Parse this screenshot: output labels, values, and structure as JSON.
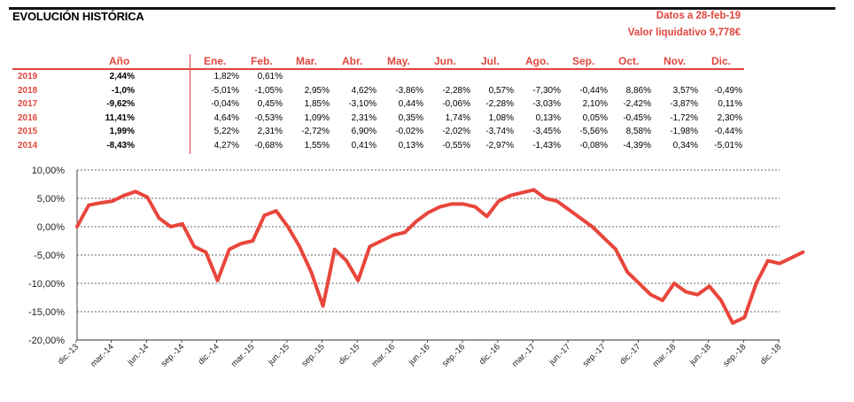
{
  "header": {
    "title": "EVOLUCIÓN HISTÓRICA",
    "date_text": "Datos a 28-feb-19",
    "nav_text": "Valor liquidativo 9,778€"
  },
  "table": {
    "year_header": "Año",
    "months": [
      "Ene.",
      "Feb.",
      "Mar.",
      "Abr.",
      "May.",
      "Jun.",
      "Jul.",
      "Ago.",
      "Sep.",
      "Oct.",
      "Nov.",
      "Dic."
    ],
    "rows": [
      {
        "year": "2019",
        "total": "2,44%",
        "values": [
          "1,82%",
          "0,61%",
          "",
          "",
          "",
          "",
          "",
          "",
          "",
          "",
          "",
          ""
        ]
      },
      {
        "year": "2018",
        "total": "-1,0%",
        "values": [
          "-5,01%",
          "-1,05%",
          "2,95%",
          "4,62%",
          "-3,86%",
          "-2,28%",
          "0,57%",
          "-7,30%",
          "-0,44%",
          "8,86%",
          "3,57%",
          "-0,49%"
        ]
      },
      {
        "year": "2017",
        "total": "-9,62%",
        "values": [
          "-0,04%",
          "0,45%",
          "1,85%",
          "-3,10%",
          "0,44%",
          "-0,06%",
          "-2,28%",
          "-3,03%",
          "2,10%",
          "-2,42%",
          "-3,87%",
          "0,11%"
        ]
      },
      {
        "year": "2016",
        "total": "11,41%",
        "values": [
          "4,64%",
          "-0,53%",
          "1,09%",
          "2,31%",
          "0,35%",
          "1,74%",
          "1,08%",
          "0,13%",
          "0,05%",
          "-0,45%",
          "-1,72%",
          "2,30%"
        ]
      },
      {
        "year": "2015",
        "total": "1,99%",
        "values": [
          "5,22%",
          "2,31%",
          "-2,72%",
          "6,90%",
          "-0,02%",
          "-2,02%",
          "-3,74%",
          "-3,45%",
          "-5,56%",
          "8,58%",
          "-1,98%",
          "-0,44%"
        ]
      },
      {
        "year": "2014",
        "total": "-8,43%",
        "values": [
          "4,27%",
          "-0,68%",
          "1,55%",
          "0,41%",
          "0,13%",
          "-0,55%",
          "-2,97%",
          "-1,43%",
          "-0,08%",
          "-4,39%",
          "0,34%",
          "-5,01%"
        ]
      }
    ]
  },
  "colors": {
    "accent": "#e0463d",
    "line": "#e8463c"
  },
  "chart_data": {
    "type": "line",
    "title": "",
    "xlabel": "",
    "ylabel": "",
    "ylim": [
      -20,
      10
    ],
    "y_ticks": [
      "10,00%",
      "5,00%",
      "0,00%",
      "-5,00%",
      "-10,00%",
      "-15,00%",
      "-20,00%"
    ],
    "y_tick_values": [
      10,
      5,
      0,
      -5,
      -10,
      -15,
      -20
    ],
    "x_ticks": [
      "dic.-13",
      "mar.-14",
      "jun.-14",
      "sep.-14",
      "dic.-14",
      "mar.-15",
      "jun.-15",
      "sep.-15",
      "dic.-15",
      "mar.-16",
      "jun.-16",
      "sep.-16",
      "dic.-16",
      "mar.-17",
      "jun.-17",
      "sep.-17",
      "dic.-17",
      "mar.-18",
      "jun.-18",
      "sep.-18",
      "dic.-18"
    ],
    "grid": true,
    "series": [
      {
        "x": [
          "dic.-13",
          "ene.-14",
          "feb.-14",
          "mar.-14",
          "abr.-14",
          "may.-14",
          "jun.-14",
          "jul.-14",
          "ago.-14",
          "sep.-14",
          "oct.-14",
          "nov.-14",
          "dic.-14",
          "ene.-15",
          "feb.-15",
          "mar.-15",
          "abr.-15",
          "may.-15",
          "jun.-15",
          "jul.-15",
          "ago.-15",
          "sep.-15",
          "oct.-15",
          "nov.-15",
          "dic.-15",
          "ene.-16",
          "feb.-16",
          "mar.-16",
          "abr.-16",
          "may.-16",
          "jun.-16",
          "jul.-16",
          "ago.-16",
          "sep.-16",
          "oct.-16",
          "nov.-16",
          "dic.-16",
          "ene.-17",
          "feb.-17",
          "mar.-17",
          "abr.-17",
          "may.-17",
          "jun.-17",
          "jul.-17",
          "ago.-17",
          "sep.-17",
          "oct.-17",
          "nov.-17",
          "dic.-17",
          "ene.-18",
          "feb.-18",
          "mar.-18",
          "abr.-18",
          "may.-18",
          "jun.-18",
          "jul.-18",
          "ago.-18",
          "sep.-18",
          "oct.-18",
          "nov.-18",
          "dic.-18",
          "ene.-19",
          "feb.-19"
        ],
        "values": [
          0.0,
          3.8,
          4.2,
          4.5,
          5.5,
          6.2,
          5.2,
          1.5,
          0.0,
          0.5,
          -3.5,
          -4.5,
          -9.5,
          -4.0,
          -3.0,
          -2.5,
          2.0,
          2.8,
          0.0,
          -3.5,
          -8.0,
          -14.0,
          -4.0,
          -6.0,
          -9.5,
          -3.5,
          -2.5,
          -1.5,
          -1.0,
          1.0,
          2.5,
          3.5,
          4.0,
          4.0,
          3.5,
          1.8,
          4.5,
          5.5,
          6.0,
          6.5,
          5.0,
          4.5,
          3.0,
          1.5,
          0.0,
          -2.0,
          -4.0,
          -8.0,
          -10.0,
          -12.0,
          -13.0,
          -10.0,
          -11.5,
          -12.0,
          -10.5,
          -13.0,
          -17.0,
          -16.0,
          -10.0,
          -6.0,
          -6.5,
          -5.5,
          -4.5
        ]
      }
    ]
  }
}
